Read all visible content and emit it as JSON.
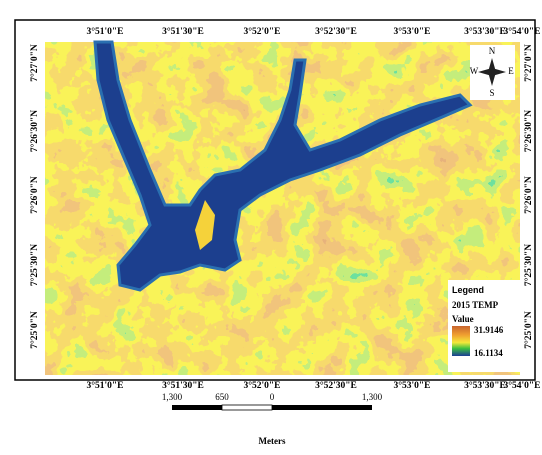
{
  "map": {
    "top_labels": [
      "3°51'0\"E",
      "3°51'30\"E",
      "3°52'0\"E",
      "3°52'30\"E",
      "3°53'0\"E",
      "3°53'30\"E",
      "3°54'0\"E"
    ],
    "bottom_labels": [
      "3°51'0\"E",
      "3°51'30\"E",
      "3°52'0\"E",
      "3°52'30\"E",
      "3°53'0\"E",
      "3°53'30\"E",
      "3°54'0\"E"
    ],
    "left_labels": [
      "7°27'0\"N",
      "7°26'30\"N",
      "7°26'0\"N",
      "7°25'30\"N",
      "7°25'0\"N"
    ],
    "right_labels": [
      "7°27'0\"N",
      "7°26'30\"N",
      "7°26'0\"N",
      "7°25'30\"N",
      "7°25'0\"N"
    ],
    "compass": {
      "n": "N",
      "s": "S",
      "e": "E",
      "w": "W"
    },
    "legend": {
      "title": "Legend",
      "layer": "2015 TEMP",
      "value_label": "Value",
      "high": "31.9146",
      "low": "16.1134"
    },
    "scale_bar": {
      "labels": [
        "1,300",
        "650",
        "0",
        "1,300"
      ],
      "unit": "Meters"
    }
  }
}
